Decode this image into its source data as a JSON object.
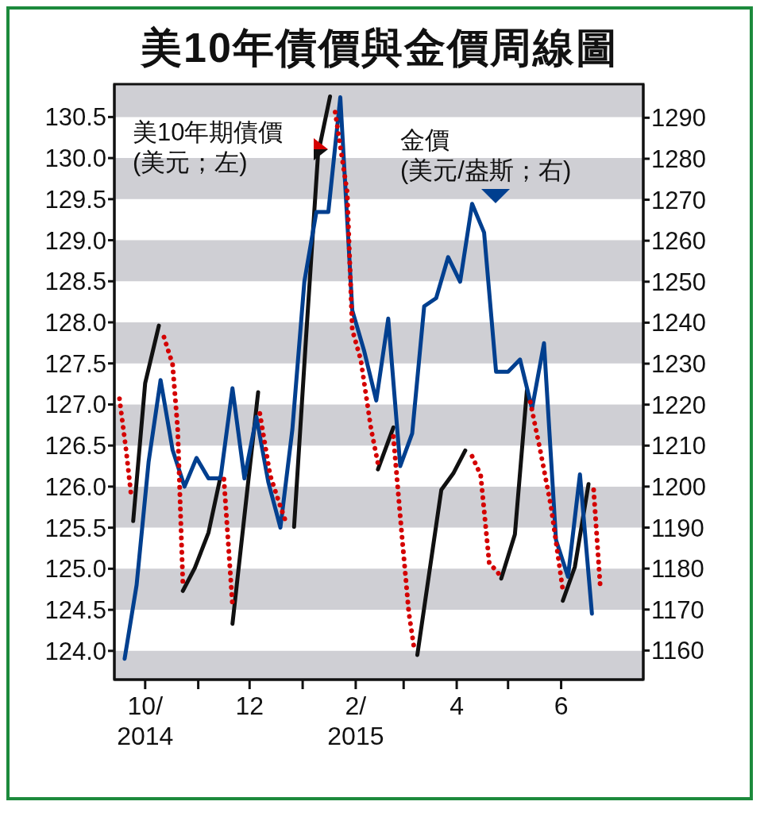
{
  "chart_data": {
    "type": "line",
    "title": "美10年債價與金價周線圖",
    "x": [
      "2014-09-19",
      "2014-09-26",
      "2014-10-03",
      "2014-10-10",
      "2014-10-17",
      "2014-10-24",
      "2014-10-31",
      "2014-11-07",
      "2014-11-14",
      "2014-11-21",
      "2014-11-28",
      "2014-12-05",
      "2014-12-12",
      "2014-12-19",
      "2014-12-26",
      "2015-01-02",
      "2015-01-09",
      "2015-01-16",
      "2015-01-23",
      "2015-01-30",
      "2015-02-06",
      "2015-02-13",
      "2015-02-20",
      "2015-02-27",
      "2015-03-06",
      "2015-03-13",
      "2015-03-20",
      "2015-03-27",
      "2015-04-03",
      "2015-04-10",
      "2015-04-17",
      "2015-04-24",
      "2015-05-01",
      "2015-05-08",
      "2015-05-15",
      "2015-05-22",
      "2015-05-29",
      "2015-06-05",
      "2015-06-12",
      "2015-06-19"
    ],
    "series": [
      {
        "name": "美10年期債價 (美元；左)",
        "color": "#d40000",
        "line_style": "dotted",
        "x": [
          "2014-09-16",
          "2014-09-20",
          "2014-09-23"
        ],
        "values": [
          127.07,
          126.42,
          125.86
        ]
      },
      {
        "color": "#d40000",
        "line_style": "dotted",
        "x": [
          "2014-10-12",
          "2014-10-17",
          "2014-10-20",
          "2014-10-23"
        ],
        "values": [
          127.82,
          127.49,
          126.7,
          124.84
        ]
      },
      {
        "color": "#d40000",
        "line_style": "dotted",
        "x": [
          "2014-11-16",
          "2014-11-21"
        ],
        "values": [
          126.09,
          124.56
        ]
      },
      {
        "color": "#d40000",
        "line_style": "dotted",
        "x": [
          "2014-12-07",
          "2014-12-13",
          "2014-12-18",
          "2014-12-22"
        ],
        "values": [
          126.89,
          126.14,
          125.82,
          125.58
        ]
      },
      {
        "color": "#d40000",
        "line_style": "dotted",
        "x": [
          "2015-01-20",
          "2015-01-27",
          "2015-01-30",
          "2015-02-04",
          "2015-02-10",
          "2015-02-14"
        ],
        "values": [
          130.56,
          129.59,
          127.91,
          127.54,
          126.7,
          126.28
        ]
      },
      {
        "color": "#d40000",
        "line_style": "dotted",
        "x": [
          "2015-02-23",
          "2015-02-28",
          "2015-03-04",
          "2015-03-07"
        ],
        "values": [
          126.61,
          125.4,
          124.47,
          124.05
        ]
      },
      {
        "color": "#d40000",
        "line_style": "dotted",
        "x": [
          "2015-04-10",
          "2015-04-15",
          "2015-04-20",
          "2015-04-26"
        ],
        "values": [
          126.37,
          126.14,
          125.07,
          124.93
        ]
      },
      {
        "color": "#d40000",
        "line_style": "dotted",
        "x": [
          "2015-05-14",
          "2015-05-20",
          "2015-05-26",
          "2015-06-02"
        ],
        "values": [
          127.03,
          126.42,
          125.77,
          124.74
        ]
      },
      {
        "color": "#d40000",
        "line_style": "dotted",
        "x": [
          "2015-06-20",
          "2015-06-24"
        ],
        "values": [
          125.96,
          124.74
        ]
      },
      {
        "color": "#111111",
        "line_style": "solid",
        "x": [
          "2014-09-24",
          "2014-10-01",
          "2014-10-09"
        ],
        "values": [
          125.58,
          127.26,
          127.96
        ]
      },
      {
        "color": "#111111",
        "line_style": "solid",
        "x": [
          "2014-10-23",
          "2014-10-30",
          "2014-11-07",
          "2014-11-14"
        ],
        "values": [
          124.73,
          125.01,
          125.44,
          126.12
        ]
      },
      {
        "color": "#111111",
        "line_style": "solid",
        "x": [
          "2014-11-21",
          "2014-12-06"
        ],
        "values": [
          124.33,
          127.15
        ]
      },
      {
        "color": "#111111",
        "line_style": "solid",
        "x": [
          "2014-12-27",
          "2015-01-03",
          "2015-01-10",
          "2015-01-17"
        ],
        "values": [
          125.51,
          127.82,
          130.05,
          130.75
        ]
      },
      {
        "color": "#111111",
        "line_style": "solid",
        "x": [
          "2015-02-14",
          "2015-02-23"
        ],
        "values": [
          126.21,
          126.72
        ]
      },
      {
        "color": "#111111",
        "line_style": "solid",
        "x": [
          "2015-03-09",
          "2015-03-23",
          "2015-03-30",
          "2015-04-06"
        ],
        "values": [
          123.95,
          125.96,
          126.16,
          126.44
        ]
      },
      {
        "color": "#111111",
        "line_style": "solid",
        "x": [
          "2015-04-27",
          "2015-05-05",
          "2015-05-12"
        ],
        "values": [
          124.88,
          125.42,
          127.17
        ]
      },
      {
        "color": "#111111",
        "line_style": "solid",
        "x": [
          "2015-06-02",
          "2015-06-09",
          "2015-06-17"
        ],
        "values": [
          124.61,
          125.02,
          126.03
        ]
      },
      {
        "name": "金價 (美元/盎斯；右)",
        "color": "#003f8f",
        "line_style": "solid",
        "axis": "y2",
        "values": [
          1158,
          1176,
          1206,
          1226,
          1209,
          1200,
          1207,
          1202,
          1202,
          1224,
          1202,
          1217,
          1201,
          1190,
          1214,
          1250,
          1267,
          1267,
          1295,
          1243,
          1233,
          1221,
          1241,
          1205,
          1213,
          1244,
          1246,
          1256,
          1250,
          1269,
          1262,
          1228,
          1228,
          1231,
          1219,
          1235,
          1187,
          1178,
          1203,
          1169
        ]
      }
    ],
    "xlim": [
      "2014-09-13",
      "2015-07-19"
    ],
    "xticks": [
      {
        "value": "2014-10-01",
        "label": "10/\n2014"
      },
      {
        "value": "2014-11-01",
        "label": null
      },
      {
        "value": "2014-12-01",
        "label": "12"
      },
      {
        "value": "2015-01-01",
        "label": null
      },
      {
        "value": "2015-02-01",
        "label": "2/\n2015"
      },
      {
        "value": "2015-03-01",
        "label": null
      },
      {
        "value": "2015-04-01",
        "label": "4"
      },
      {
        "value": "2015-05-01",
        "label": null
      },
      {
        "value": "2015-06-01",
        "label": "6"
      }
    ],
    "ylim": [
      123.65,
      130.9
    ],
    "yticks": [
      {
        "value": 124,
        "label": "124.0"
      },
      124.5,
      {
        "value": 125,
        "label": "125.0"
      },
      125.5,
      {
        "value": 126,
        "label": "126.0"
      },
      126.5,
      {
        "value": 127,
        "label": "127.0"
      },
      127.5,
      {
        "value": 128,
        "label": "128.0"
      },
      128.5,
      {
        "value": 129,
        "label": "129.0"
      },
      129.5,
      {
        "value": 130,
        "label": "130.0"
      },
      130.5
    ],
    "y2lim": [
      1152.9,
      1298.2
    ],
    "y2ticks": [
      1160,
      1170,
      1180,
      1190,
      1200,
      1210,
      1220,
      1230,
      1240,
      1250,
      1260,
      1270,
      1280,
      1290
    ],
    "bands": [
      {
        "axis": "y",
        "from": 123.65,
        "to": 124.0,
        "color": "#cfcfd4"
      },
      {
        "axis": "y",
        "from": 124.5,
        "to": 125.0,
        "color": "#cfcfd4"
      },
      {
        "axis": "y",
        "from": 125.5,
        "to": 126.0,
        "color": "#cfcfd4"
      },
      {
        "axis": "y",
        "from": 126.5,
        "to": 127.0,
        "color": "#cfcfd4"
      },
      {
        "axis": "y",
        "from": 127.5,
        "to": 128.0,
        "color": "#cfcfd4"
      },
      {
        "axis": "y",
        "from": 128.5,
        "to": 129.0,
        "color": "#cfcfd4"
      },
      {
        "axis": "y",
        "from": 129.5,
        "to": 130.0,
        "color": "#cfcfd4"
      },
      {
        "axis": "y",
        "from": 130.5,
        "to": 130.9,
        "color": "#cfcfd4"
      }
    ],
    "marker": "none"
  }
}
